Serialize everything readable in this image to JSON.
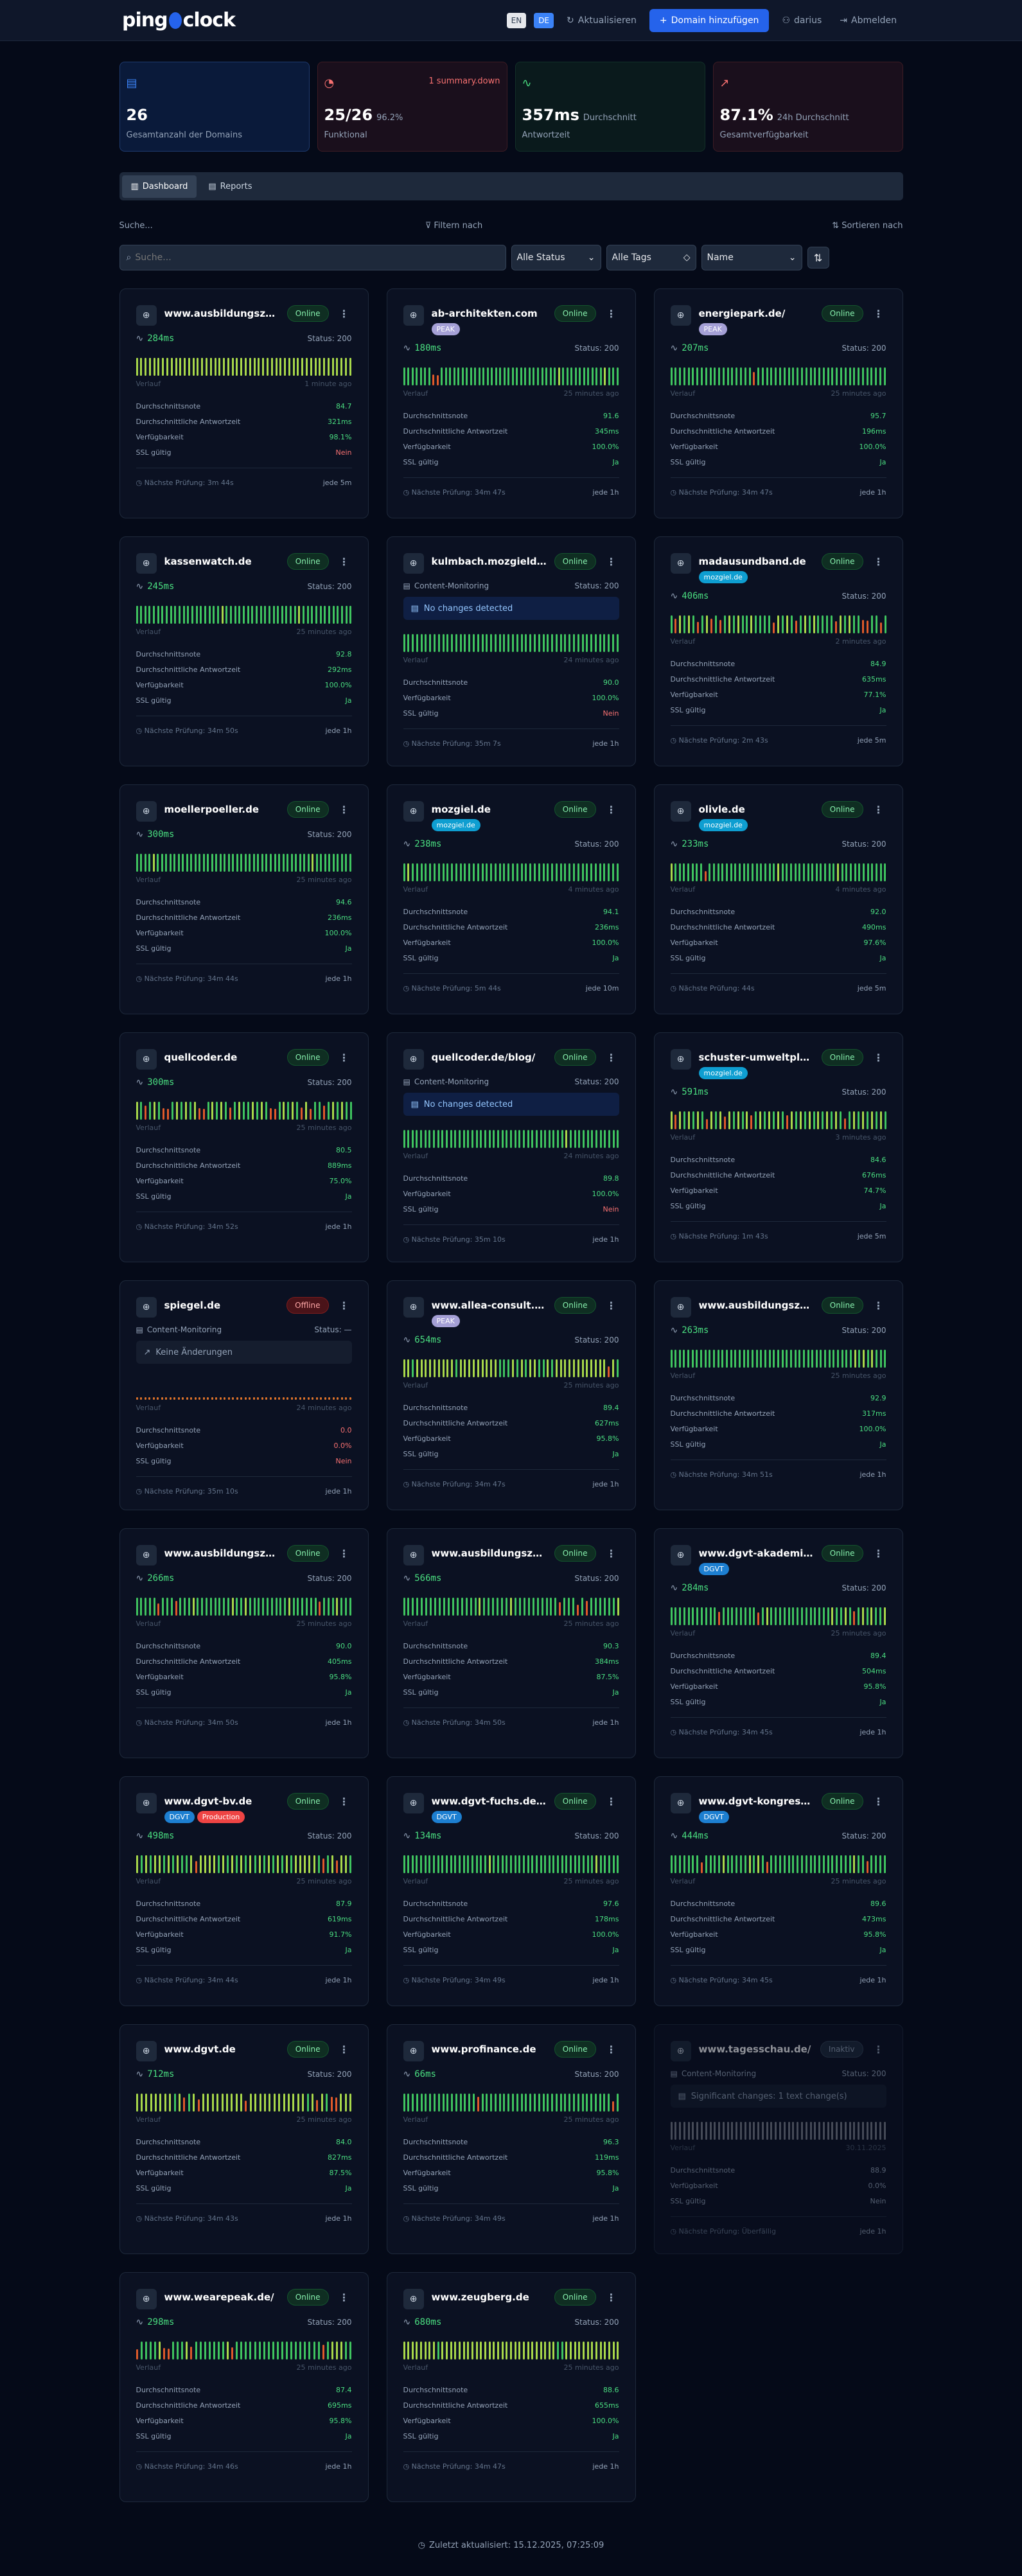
{
  "header": {
    "logo_left": "ping",
    "logo_right": "clock",
    "lang_en": "EN",
    "lang_de": "DE",
    "refresh_label": "Aktualisieren",
    "add_domain_label": "Domain hinzufügen",
    "user_label": "darius",
    "logout_label": "Abmelden"
  },
  "stats": [
    {
      "value": "26",
      "sub": "",
      "label": "Gesamtanzahl der Domains",
      "alert": "",
      "icon": "server-icon",
      "color": "#3b82f6"
    },
    {
      "value": "25/26",
      "sub": "96.2%",
      "label": "Funktional",
      "alert": "1 summary.down",
      "icon": "check-circle-icon",
      "color": "#f87171"
    },
    {
      "value": "357ms",
      "sub": "Durchschnitt",
      "label": "Antwortzeit",
      "alert": "",
      "icon": "activity-icon",
      "color": "#4ade80"
    },
    {
      "value": "87.1%",
      "sub": "24h Durchschnitt",
      "label": "Gesamtverfügbarkeit",
      "alert": "",
      "icon": "trending-up-icon",
      "color": "#f87171"
    }
  ],
  "tabs": [
    {
      "label": "Dashboard",
      "active": true
    },
    {
      "label": "Reports",
      "active": false
    }
  ],
  "filters": {
    "search_label": "Suche...",
    "filter_label": "Filtern nach",
    "sort_label": "Sortieren nach",
    "search_placeholder": "Suche...",
    "status_value": "Alle Status",
    "tags_value": "Alle Tags",
    "sort_value": "Name"
  },
  "labels": {
    "verlauf": "Verlauf",
    "score": "Durchschnittsnote",
    "avg_response": "Durchschnittliche Antwortzeit",
    "availability": "Verfügbarkeit",
    "ssl": "SSL gültig",
    "content_monitoring": "Content-Monitoring"
  },
  "tag_colors": {
    "PEAK": "#a5a0d6",
    "mozgiel.de": "#0e9ed1",
    "DGVT": "#1d7fd1",
    "Production": "#ef4444"
  },
  "domains": [
    {
      "name": "www.ausbildungszentru...",
      "status": "Online",
      "tags": [],
      "ms": "284ms",
      "http": "Status: 200",
      "content": null,
      "ago": "1 minute ago",
      "score": "84.7",
      "avg": "321ms",
      "avail": "98.1%",
      "ssl": "Nein",
      "next": "Nächste Prüfung: 3m 44s",
      "every": "jede 5m",
      "bars": "YYYYYYYYYYYYYYYYYYYYYYYYYYYYYYYYYYYYYYYYYYYYYYYYYY"
    },
    {
      "name": "ab-architekten.com",
      "status": "Online",
      "tags": [
        "PEAK"
      ],
      "ms": "180ms",
      "http": "Status: 200",
      "content": null,
      "ago": "25 minutes ago",
      "score": "91.6",
      "avg": "345ms",
      "avail": "100.0%",
      "ssl": "Ja",
      "next": "Nächste Prüfung: 34m 47s",
      "every": "jede 1h",
      "bars": "GGGGGGGRRGGGGGGGGGGGGGGGGGGGGGGGGGGGGYGGGGGGGGGGYGGG"
    },
    {
      "name": "energiepark.de/",
      "status": "Online",
      "tags": [
        "PEAK"
      ],
      "ms": "207ms",
      "http": "Status: 200",
      "content": null,
      "ago": "25 minutes ago",
      "score": "95.7",
      "avg": "196ms",
      "avail": "100.0%",
      "ssl": "Ja",
      "next": "Nächste Prüfung: 34m 47s",
      "every": "jede 1h",
      "bars": "GGGGGGGGGGGGGGGGGGGRGGGGGGGGGGGGGGGGGGGGGGGGGGGGGG"
    },
    {
      "name": "kassenwatch.de",
      "status": "Online",
      "tags": [],
      "ms": "245ms",
      "http": "Status: 200",
      "content": null,
      "ago": "25 minutes ago",
      "score": "92.8",
      "avg": "292ms",
      "avail": "100.0%",
      "ssl": "Ja",
      "next": "Nächste Prüfung: 34m 50s",
      "every": "jede 1h",
      "bars": "GGGGGGGGGGGGGGGGGGGGYGGGGGGGGGGGGGGGGGYGGGGGGGGGGGG"
    },
    {
      "name": "kulmbach.mozgieldev.de...",
      "status": "Online",
      "tags": [],
      "ms": null,
      "http": "Status: 200",
      "content": {
        "text": "No changes detected",
        "style": "blue"
      },
      "ago": "24 minutes ago",
      "score": "90.0",
      "avg": null,
      "avail": "100.0%",
      "ssl": "Nein",
      "next": "Nächste Prüfung: 35m 7s",
      "every": "jede 1h",
      "bars": "GGGGGGGGGGGGGGGGGGGGGGGGGGGGGGGGGGGGGGGGGGGGGGGGGG"
    },
    {
      "name": "madausundband.de",
      "status": "Online",
      "tags": [
        "mozgiel.de"
      ],
      "ms": "406ms",
      "http": "Status: 200",
      "content": null,
      "ago": "2 minutes ago",
      "score": "84.9",
      "avg": "635ms",
      "avail": "77.1%",
      "ssl": "Ja",
      "next": "Nächste Prüfung: 2m 43s",
      "every": "jede 5m",
      "bars": "GRYGYGRGYRGRGYGYGGYGGGGRYGYGRGYGYGGGGRYGYGGRRGGRG"
    },
    {
      "name": "moellerpoeller.de",
      "status": "Online",
      "tags": [],
      "ms": "300ms",
      "http": "Status: 200",
      "content": null,
      "ago": "25 minutes ago",
      "score": "94.6",
      "avg": "236ms",
      "avail": "100.0%",
      "ssl": "Ja",
      "next": "Nächste Prüfung: 34m 44s",
      "every": "jede 1h",
      "bars": "GGGGYGGGGGGGGGGGGGGGGGGGGGGGGGGGGGGGGGGGGGYGGGGGGGGG"
    },
    {
      "name": "mozgiel.de",
      "status": "Online",
      "tags": [
        "mozgiel.de"
      ],
      "ms": "238ms",
      "http": "Status: 200",
      "content": null,
      "ago": "4 minutes ago",
      "score": "94.1",
      "avg": "236ms",
      "avail": "100.0%",
      "ssl": "Ja",
      "next": "Nächste Prüfung: 5m 44s",
      "every": "jede 10m",
      "bars": "GYGGGGGGGGGGGGGGGGGGGGGGGGGGGGGGGGGGGGGGGGGGGGGGGG"
    },
    {
      "name": "olivle.de",
      "status": "Online",
      "tags": [
        "mozgiel.de"
      ],
      "ms": "233ms",
      "http": "Status: 200",
      "content": null,
      "ago": "4 minutes ago",
      "score": "92.0",
      "avg": "490ms",
      "avail": "97.6%",
      "ssl": "Ja",
      "next": "Nächste Prüfung: 44s",
      "every": "jede 5m",
      "bars": "YGGGGGGGRGGGGGGGGGGGGGGGGYGGGGGGGGGGGGGYGGGGGGGGGGG"
    },
    {
      "name": "quellcoder.de",
      "status": "Online",
      "tags": [],
      "ms": "300ms",
      "http": "Status: 200",
      "content": null,
      "ago": "25 minutes ago",
      "score": "80.5",
      "avg": "889ms",
      "avail": "75.0%",
      "ssl": "Ja",
      "next": "Nächste Prüfung: 34m 52s",
      "every": "jede 1h",
      "bars": "YGRGYGRRGYGYGYRRGYGYGRGYGGYGYGRRGYGYGRYRGGRGYGYGG"
    },
    {
      "name": "quellcoder.de/blog/",
      "status": "Online",
      "tags": [],
      "ms": null,
      "http": "Status: 200",
      "content": {
        "text": "No changes detected",
        "style": "blue"
      },
      "ago": "24 minutes ago",
      "score": "89.8",
      "avg": null,
      "avail": "100.0%",
      "ssl": "Nein",
      "next": "Nächste Prüfung: 35m 10s",
      "every": "jede 1h",
      "bars": "GGGGGGGGGGGGGGGGGGGGGGGGGGGGGGGGGGGGGGYGGGGGGGGGGGG"
    },
    {
      "name": "schuster-umweltplan.de",
      "status": "Online",
      "tags": [
        "mozgiel.de"
      ],
      "ms": "591ms",
      "http": "Status: 200",
      "content": null,
      "ago": "3 minutes ago",
      "score": "84.6",
      "avg": "676ms",
      "avail": "74.7%",
      "ssl": "Ja",
      "next": "Nächste Prüfung: 1m 43s",
      "every": "jede 5m",
      "bars": "YRYGYGYGRYGYRYGYGYRGYGYGYGRYGYGYGYGYGYGRGYGYGYGYG"
    },
    {
      "name": "spiegel.de",
      "status": "Offline",
      "tags": [],
      "ms": null,
      "http": "Status: —",
      "content": {
        "text": "Keine Änderungen",
        "style": "dark"
      },
      "ago": "24 minutes ago",
      "score": "0.0",
      "avg": null,
      "avail": "0.0%",
      "ssl": "Nein",
      "next": "Nächste Prüfung: 35m 10s",
      "every": "jede 1h",
      "bars": "DDDDDDDDDDDDDDDDDDDDDDDDDDDDDDDDDDDDDDDDDDDDDDDDDDDD"
    },
    {
      "name": "www.allea-consult.de/",
      "status": "Online",
      "tags": [
        "PEAK"
      ],
      "ms": "654ms",
      "http": "Status: 200",
      "content": null,
      "ago": "25 minutes ago",
      "score": "89.4",
      "avg": "627ms",
      "avail": "95.8%",
      "ssl": "Ja",
      "next": "Nächste Prüfung: 34m 47s",
      "every": "jede 1h",
      "bars": "YYGYYYYYYYYYGYYYYYYYYYGGGYGYGYYGGYGYYYYYYYYYYYYRYG"
    },
    {
      "name": "www.ausbildungszentru...",
      "status": "Online",
      "tags": [],
      "ms": "263ms",
      "http": "Status: 200",
      "content": null,
      "ago": "25 minutes ago",
      "score": "92.9",
      "avg": "317ms",
      "avail": "100.0%",
      "ssl": "Ja",
      "next": "Nächste Prüfung: 34m 51s",
      "every": "jede 1h",
      "bars": "GGGGGGGGGGGGGGGGGGGGGGGGGGGGGGGGGGGGGGGGGGGYGYGYGGG"
    },
    {
      "name": "www.ausbildungszentru...",
      "status": "Online",
      "tags": [],
      "ms": "266ms",
      "http": "Status: 200",
      "content": null,
      "ago": "25 minutes ago",
      "score": "90.0",
      "avg": "405ms",
      "avail": "95.8%",
      "ssl": "Ja",
      "next": "Nächste Prüfung: 34m 50s",
      "every": "jede 1h",
      "bars": "GGGGGRGGGRGGGYGGGGGGGGYGGYGGGGGGGGGYGGGGGGRGGGYGGG"
    },
    {
      "name": "www.ausbildungszentru...",
      "status": "Online",
      "tags": [],
      "ms": "566ms",
      "http": "Status: 200",
      "content": null,
      "ago": "25 minutes ago",
      "score": "90.3",
      "avg": "384ms",
      "avail": "87.5%",
      "ssl": "Ja",
      "next": "Nächste Prüfung: 34m 50s",
      "every": "jede 1h",
      "bars": "GGGGGGGGGGGGGGGGGYGGGGGGYGGGGGGGGGGRGGGRGRGGGGGGY"
    },
    {
      "name": "www.dgvt-akademie.de",
      "status": "Online",
      "tags": [
        "DGVT"
      ],
      "ms": "284ms",
      "http": "Status: 200",
      "content": null,
      "ago": "25 minutes ago",
      "score": "89.4",
      "avg": "504ms",
      "avail": "95.8%",
      "ssl": "Ja",
      "next": "Nächste Prüfung: 34m 45s",
      "every": "jede 1h",
      "bars": "GGGGGGGGGGGRGGGGGGGGRGYGGGGGGGGGGGGGGYGGYGRGYGYGGY"
    },
    {
      "name": "www.dgvt-bv.de",
      "status": "Online",
      "tags": [
        "DGVT",
        "Production"
      ],
      "ms": "498ms",
      "http": "Status: 200",
      "content": null,
      "ago": "25 minutes ago",
      "score": "87.9",
      "avg": "619ms",
      "avail": "91.7%",
      "ssl": "Ja",
      "next": "Nächste Prüfung: 34m 44s",
      "every": "jede 1h",
      "bars": "YGYGYYGYGYGGYRYYYYGYGYGYGYGYGYGYGYGYYYYYGRGYRYYG"
    },
    {
      "name": "www.dgvt-fuchs.de/login",
      "status": "Online",
      "tags": [
        "DGVT"
      ],
      "ms": "134ms",
      "http": "Status: 200",
      "content": null,
      "ago": "25 minutes ago",
      "score": "97.6",
      "avg": "178ms",
      "avail": "100.0%",
      "ssl": "Ja",
      "next": "Nächste Prüfung: 34m 49s",
      "every": "jede 1h",
      "bars": "GGGGGGGGGGGGGGGGGGGGYGGGGGGGGGGGGGGGGGGGGGGGGYGGGGG"
    },
    {
      "name": "www.dgvt-kongress.de",
      "status": "Online",
      "tags": [
        "DGVT"
      ],
      "ms": "444ms",
      "http": "Status: 200",
      "content": null,
      "ago": "25 minutes ago",
      "score": "89.6",
      "avg": "473ms",
      "avail": "95.8%",
      "ssl": "Ja",
      "next": "Nächste Prüfung: 34m 45s",
      "every": "jede 1h",
      "bars": "GGGGGGGRGGGGYGGGGGYGYGRGGGGGGGGGGGGGGGGGGGYGGRGGGG"
    },
    {
      "name": "www.dgvt.de",
      "status": "Online",
      "tags": [],
      "ms": "712ms",
      "http": "Status: 200",
      "content": null,
      "ago": "25 minutes ago",
      "score": "84.0",
      "avg": "827ms",
      "avail": "87.5%",
      "ssl": "Ja",
      "next": "Nächste Prüfung: 34m 43s",
      "every": "jede 1h",
      "bars": "YYYYYYYYGYRGYRYYYYYYYYYRYYYYYYYYYYYYGYRYGRRYYY"
    },
    {
      "name": "www.profinance.de",
      "status": "Online",
      "tags": [],
      "ms": "66ms",
      "http": "Status: 200",
      "content": null,
      "ago": "25 minutes ago",
      "score": "96.3",
      "avg": "119ms",
      "avail": "95.8%",
      "ssl": "Ja",
      "next": "Nächste Prüfung: 34m 49s",
      "every": "jede 1h",
      "bars": "GGGGGGGGGGGGGGGGGRGGGGGGGGGGGGGGGGGGGGGGGGGGGGGGRG"
    },
    {
      "name": "www.tagesschau.de/",
      "status": "Inaktiv",
      "tags": [],
      "ms": null,
      "http": "Status: 200",
      "content": {
        "text": "Significant changes: 1 text change(s)",
        "style": "dark"
      },
      "ago": "30.11.2025",
      "score": "88.9",
      "avg": null,
      "avail": "0.0%",
      "ssl": "Nein",
      "next": "Nächste Prüfung: Überfällig",
      "every": "jede 1h",
      "bars": "IIIIIIIIIIIIIIIIIIIIIIIIIIIIIIIIIIIIIIIIIIIIIIIIII"
    },
    {
      "name": "www.wearepeak.de/",
      "status": "Online",
      "tags": [],
      "ms": "298ms",
      "http": "Status: 200",
      "content": null,
      "ago": "25 minutes ago",
      "score": "87.4",
      "avg": "695ms",
      "avail": "95.8%",
      "ssl": "Ja",
      "next": "Nächste Prüfung: 34m 46s",
      "every": "jede 1h",
      "bars": "RGGGGYRRGGGYRGGGGGGGYRGGGGGGGGGGGGGGGGGGGRGYYYGG"
    },
    {
      "name": "www.zeugberg.de",
      "status": "Online",
      "tags": [],
      "ms": "680ms",
      "http": "Status: 200",
      "content": null,
      "ago": "25 minutes ago",
      "score": "88.6",
      "avg": "655ms",
      "avail": "100.0%",
      "ssl": "Ja",
      "next": "Nächste Prüfung: 34m 47s",
      "every": "jede 1h",
      "bars": "YYYYYYYYGYYYYYYYYYYYYYYYYYYYYYYYYYYYGGYYYYYYYYYYYYY"
    }
  ],
  "footer": {
    "last_updated": "Zuletzt aktualisiert: 15.12.2025, 07:25:09"
  }
}
